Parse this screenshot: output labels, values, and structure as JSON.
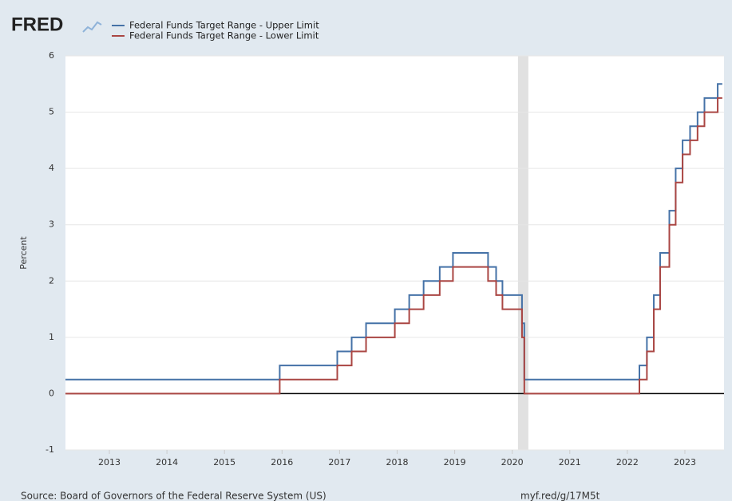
{
  "chart_data": {
    "type": "line",
    "step": true,
    "logo": "FRED",
    "ylabel": "Percent",
    "source": "Source: Board of Governors of the Federal Reserve System (US)",
    "link": "myf.red/g/17M5t",
    "xlim": [
      2012.237,
      2023.68
    ],
    "xticks": [
      2013,
      2014,
      2015,
      2016,
      2017,
      2018,
      2019,
      2020,
      2021,
      2022,
      2023
    ],
    "ylim": [
      -1,
      6
    ],
    "yticks": [
      -1,
      0,
      1,
      2,
      3,
      4,
      5,
      6
    ],
    "grid": true,
    "recession": [
      2020.1,
      2020.28
    ],
    "series": [
      {
        "name": "Federal Funds Target Range - Upper Limit",
        "color": "#4572a7",
        "x": [
          2012.237,
          2015.96,
          2016.96,
          2017.21,
          2017.46,
          2017.96,
          2018.21,
          2018.46,
          2018.74,
          2018.97,
          2019.58,
          2019.72,
          2019.83,
          2020.17,
          2020.21,
          2022.21,
          2022.34,
          2022.46,
          2022.57,
          2022.73,
          2022.84,
          2022.96,
          2023.09,
          2023.22,
          2023.34,
          2023.57,
          2023.65
        ],
        "values": [
          0.25,
          0.5,
          0.75,
          1.0,
          1.25,
          1.5,
          1.75,
          2.0,
          2.25,
          2.5,
          2.25,
          2.0,
          1.75,
          1.25,
          0.25,
          0.5,
          1.0,
          1.75,
          2.5,
          3.25,
          4.0,
          4.5,
          4.75,
          5.0,
          5.25,
          5.5,
          5.5
        ]
      },
      {
        "name": "Federal Funds Target Range - Lower Limit",
        "color": "#aa4643",
        "x": [
          2012.237,
          2015.96,
          2016.96,
          2017.21,
          2017.46,
          2017.96,
          2018.21,
          2018.46,
          2018.74,
          2018.97,
          2019.58,
          2019.72,
          2019.83,
          2020.17,
          2020.21,
          2022.21,
          2022.34,
          2022.46,
          2022.57,
          2022.73,
          2022.84,
          2022.96,
          2023.09,
          2023.22,
          2023.34,
          2023.57,
          2023.65
        ],
        "values": [
          0,
          0.25,
          0.5,
          0.75,
          1.0,
          1.25,
          1.5,
          1.75,
          2.0,
          2.25,
          2.0,
          1.75,
          1.5,
          1.0,
          0,
          0.25,
          0.75,
          1.5,
          2.25,
          3.0,
          3.75,
          4.25,
          4.5,
          4.75,
          5.0,
          5.25,
          5.25
        ]
      }
    ]
  }
}
